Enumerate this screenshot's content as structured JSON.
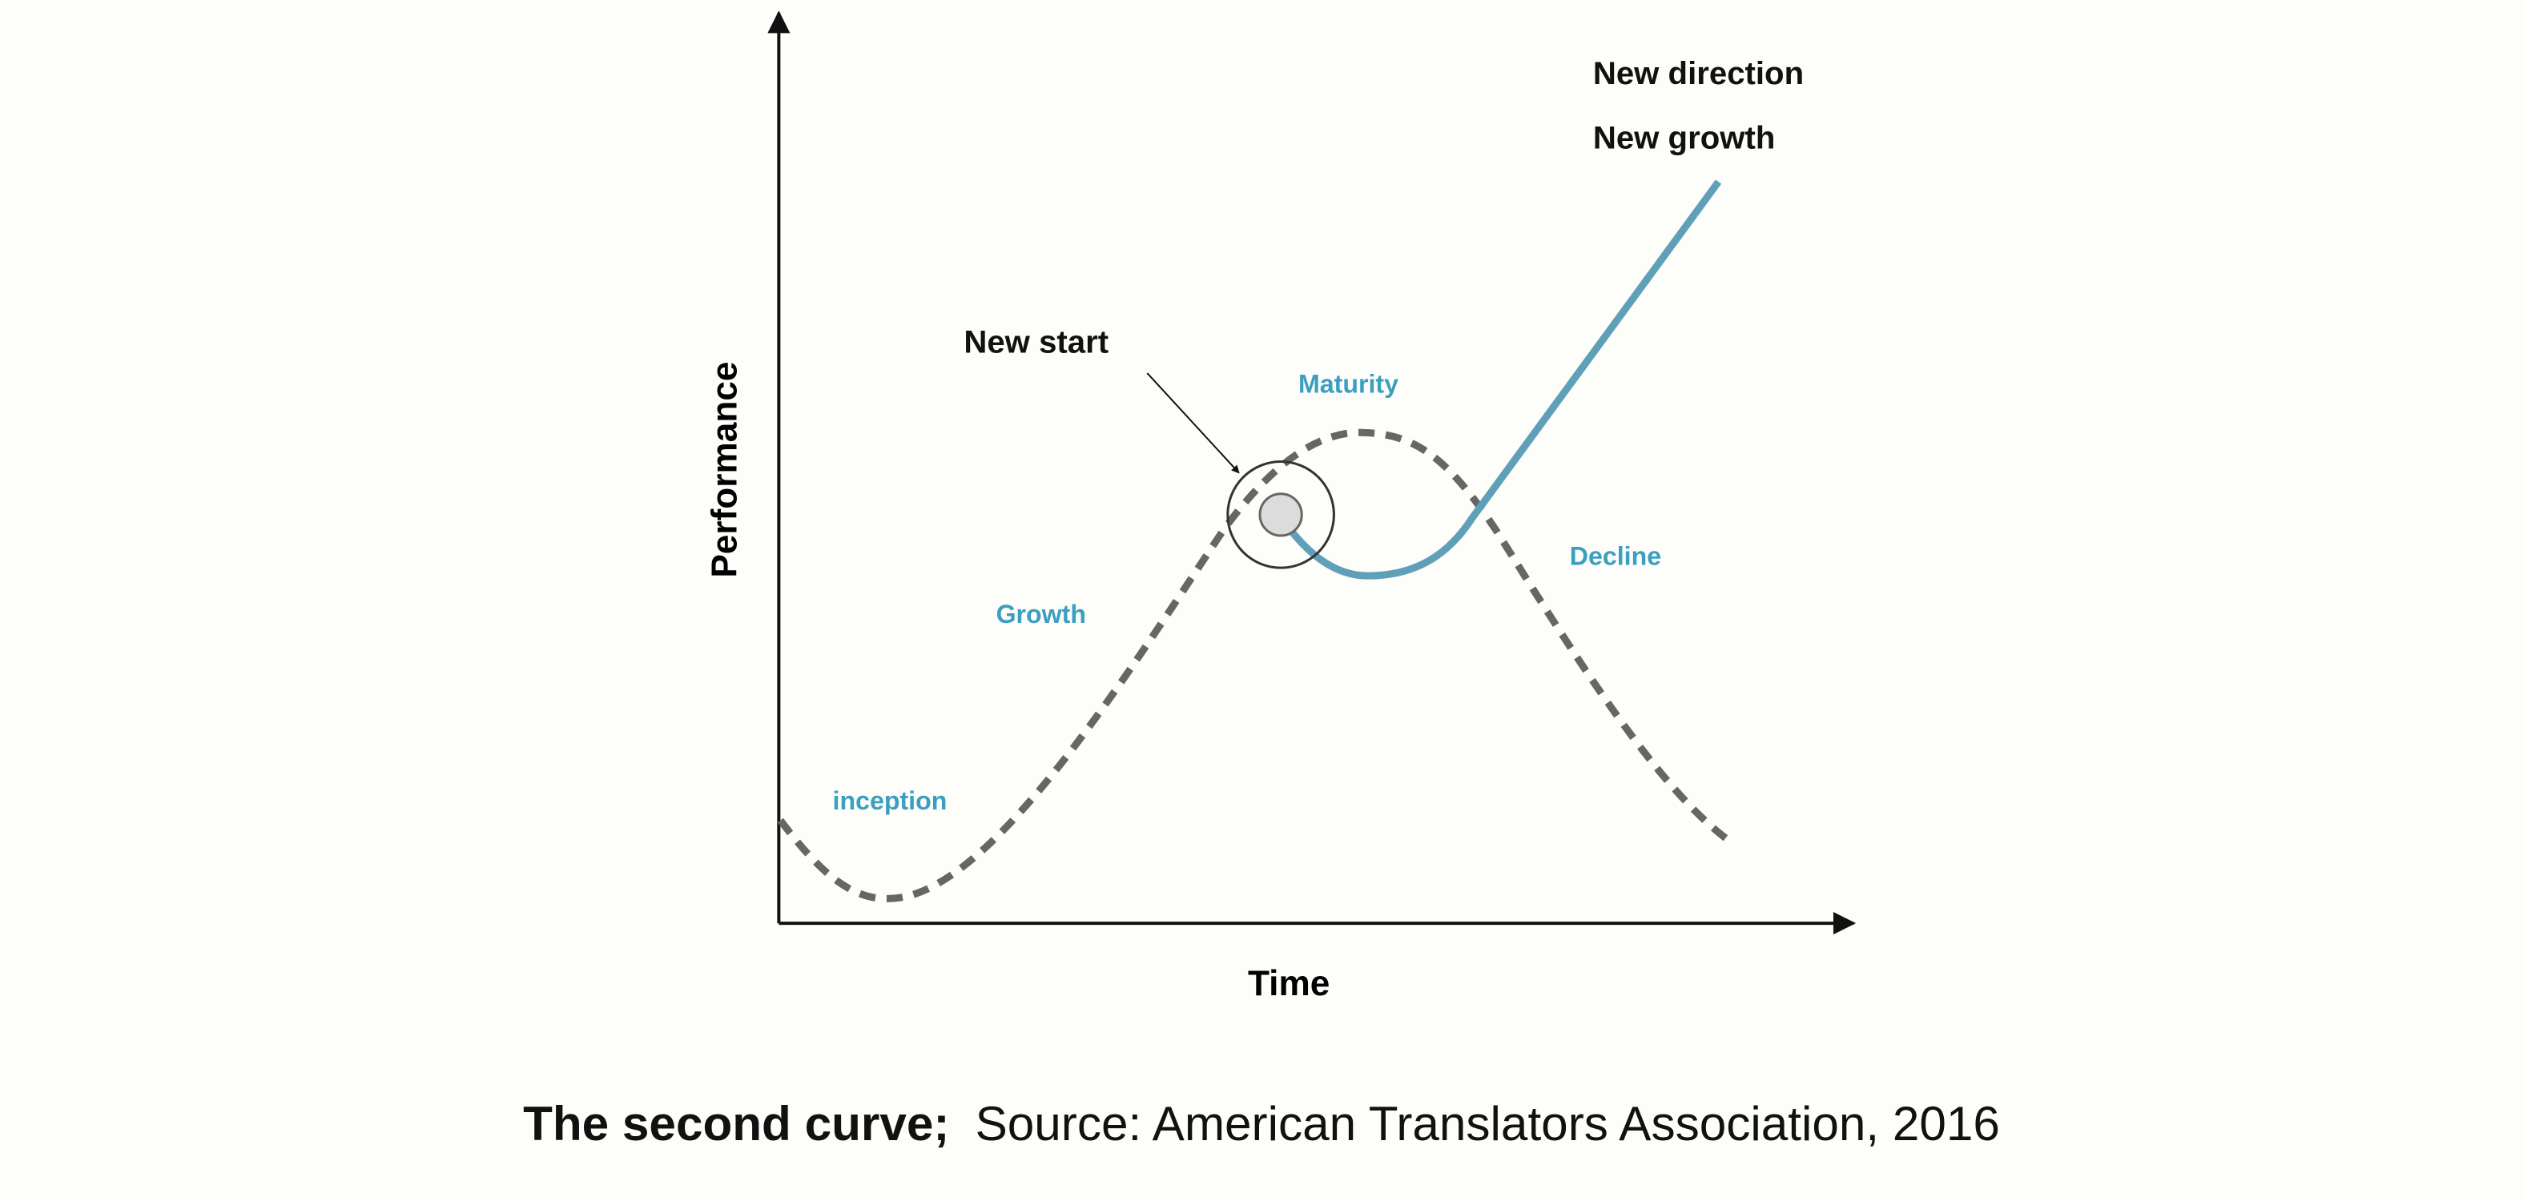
{
  "axes": {
    "y_label": "Performance",
    "x_label": "Time"
  },
  "stages": [
    "inception",
    "Growth",
    "Maturity",
    "Decline"
  ],
  "annotations": {
    "new_start": "New start",
    "new_direction": "New direction",
    "new_growth": "New growth"
  },
  "caption": {
    "title": "The second curve;",
    "source": "Source: American Translators Association, 2016"
  }
}
